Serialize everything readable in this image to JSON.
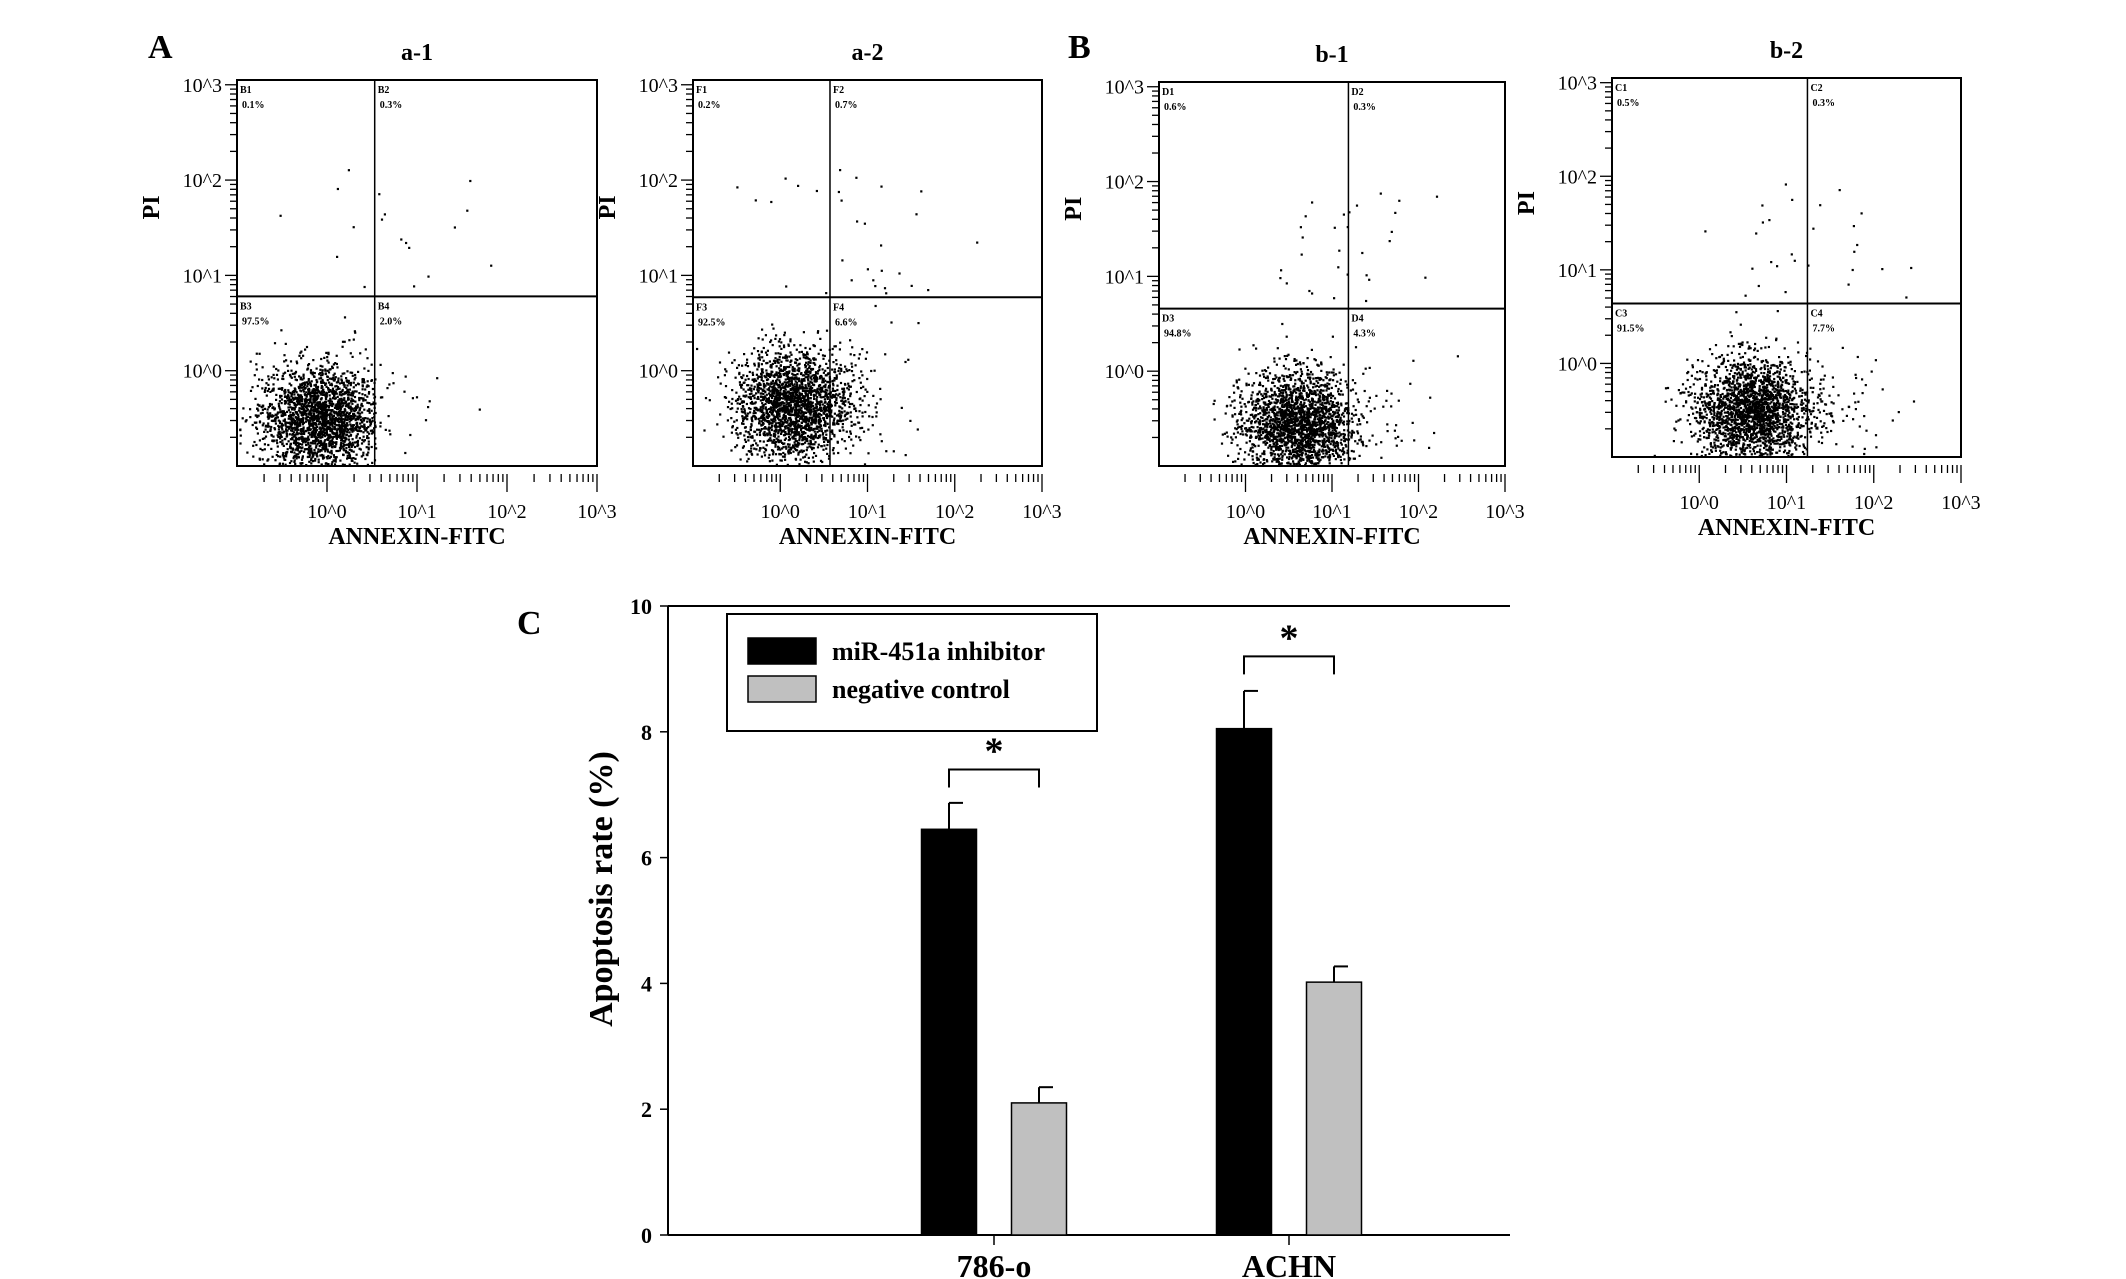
{
  "panel_labels": {
    "A": "A",
    "B": "B",
    "C": "C"
  },
  "chart_data": [
    {
      "type": "scatter",
      "id": "a-1",
      "title": "a-1",
      "xlabel": "ANNEXIN-FITC",
      "ylabel": "PI",
      "scale": "log10",
      "xlim_log": [
        -1,
        3
      ],
      "ylim_log": [
        -1,
        3.05
      ],
      "x_ticks": [
        "10^0",
        "10^1",
        "10^2",
        "10^3"
      ],
      "y_ticks": [
        "10^0",
        "10^1",
        "10^2",
        "10^3"
      ],
      "gate_log": {
        "x": 0.53,
        "y": 0.78
      },
      "quadrants": [
        {
          "name": "B1",
          "pct": "0.1%"
        },
        {
          "name": "B2",
          "pct": "0.3%"
        },
        {
          "name": "B3",
          "pct": "97.5%"
        },
        {
          "name": "B4",
          "pct": "2.0%"
        }
      ],
      "population_center_log": [
        -0.1,
        -0.5
      ]
    },
    {
      "type": "scatter",
      "id": "a-2",
      "title": "a-2",
      "xlabel": "ANNEXIN-FITC",
      "ylabel": "PI",
      "scale": "log10",
      "xlim_log": [
        -1,
        3
      ],
      "ylim_log": [
        -1,
        3.05
      ],
      "x_ticks": [
        "10^0",
        "10^1",
        "10^2",
        "10^3"
      ],
      "y_ticks": [
        "10^0",
        "10^1",
        "10^2",
        "10^3"
      ],
      "gate_log": {
        "x": 0.57,
        "y": 0.77
      },
      "quadrants": [
        {
          "name": "F1",
          "pct": "0.2%"
        },
        {
          "name": "F2",
          "pct": "0.7%"
        },
        {
          "name": "F3",
          "pct": "92.5%"
        },
        {
          "name": "F4",
          "pct": "6.6%"
        }
      ],
      "population_center_log": [
        0.15,
        -0.35
      ]
    },
    {
      "type": "scatter",
      "id": "b-1",
      "title": "b-1",
      "xlabel": "ANNEXIN-FITC",
      "ylabel": "PI",
      "scale": "log10",
      "xlim_log": [
        -1,
        3
      ],
      "ylim_log": [
        -1,
        3.05
      ],
      "x_ticks": [
        "10^0",
        "10^1",
        "10^2",
        "10^3"
      ],
      "y_ticks": [
        "10^0",
        "10^1",
        "10^2",
        "10^3"
      ],
      "gate_log": {
        "x": 1.19,
        "y": 0.66
      },
      "quadrants": [
        {
          "name": "D1",
          "pct": "0.6%"
        },
        {
          "name": "D2",
          "pct": "0.3%"
        },
        {
          "name": "D3",
          "pct": "94.8%"
        },
        {
          "name": "D4",
          "pct": "4.3%"
        }
      ],
      "population_center_log": [
        0.6,
        -0.55
      ]
    },
    {
      "type": "scatter",
      "id": "b-2",
      "title": "b-2",
      "xlabel": "ANNEXIN-FITC",
      "ylabel": "PI",
      "scale": "log10",
      "xlim_log": [
        -1,
        3
      ],
      "ylim_log": [
        -1,
        3.05
      ],
      "x_ticks": [
        "10^0",
        "10^1",
        "10^2",
        "10^3"
      ],
      "y_ticks": [
        "10^0",
        "10^1",
        "10^2",
        "10^3"
      ],
      "gate_log": {
        "x": 1.24,
        "y": 0.64
      },
      "quadrants": [
        {
          "name": "C1",
          "pct": "0.5%"
        },
        {
          "name": "C2",
          "pct": "0.3%"
        },
        {
          "name": "C3",
          "pct": "91.5%"
        },
        {
          "name": "C4",
          "pct": "7.7%"
        }
      ],
      "population_center_log": [
        0.6,
        -0.5
      ]
    },
    {
      "type": "bar",
      "id": "C",
      "title": "",
      "xlabel": "",
      "ylabel": "Apoptosis rate (%)",
      "ylim": [
        0,
        10
      ],
      "y_ticks": [
        "0",
        "2",
        "4",
        "6",
        "8",
        "10"
      ],
      "categories": [
        "786-o",
        "ACHN"
      ],
      "series": [
        {
          "name": "miR-451a inhibitor",
          "color": "#000000",
          "values": [
            6.45,
            8.05
          ],
          "errors": [
            0.42,
            0.6
          ]
        },
        {
          "name": "negative control",
          "color": "#c0c0c0",
          "values": [
            2.1,
            4.02
          ],
          "errors": [
            0.25,
            0.25
          ]
        }
      ],
      "significance": [
        {
          "category": "786-o",
          "label": "*",
          "bracket_y": 7.4
        },
        {
          "category": "ACHN",
          "label": "*",
          "bracket_y": 9.2
        }
      ],
      "legend": "top-left"
    }
  ]
}
